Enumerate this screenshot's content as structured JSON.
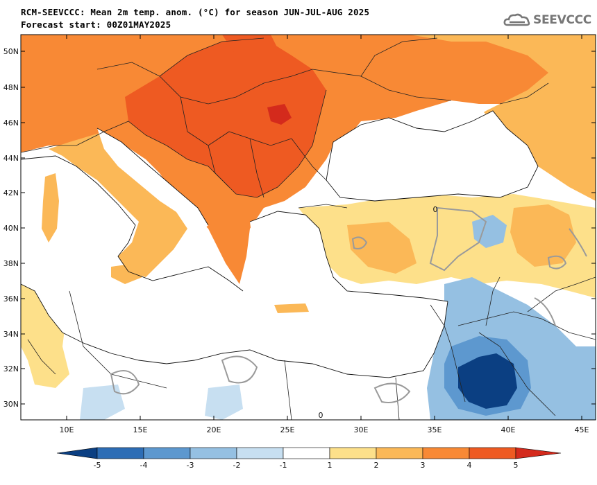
{
  "header": {
    "title_line1": "RCM-SEEVCCC: Mean 2m temp. anom. (°C) for season JUN-JUL-AUG 2025",
    "title_line2": "Forecast start: 00Z01MAY2025"
  },
  "logo": {
    "text": "SEEVCCC",
    "icon": "cloud-logo-icon"
  },
  "map": {
    "lon_range": [
      7,
      46
    ],
    "lat_range": [
      29,
      51
    ],
    "x_ticks": [
      "10E",
      "15E",
      "20E",
      "25E",
      "30E",
      "35E",
      "40E",
      "45E"
    ],
    "y_ticks": [
      "50N",
      "48N",
      "46N",
      "44N",
      "42N",
      "40N",
      "38N",
      "36N",
      "34N",
      "32N",
      "30N"
    ],
    "contour_label": "0"
  },
  "colorbar": {
    "labels": [
      "-5",
      "-4",
      "-3",
      "-2",
      "-1",
      "1",
      "2",
      "3",
      "4",
      "5"
    ],
    "colors": [
      "#0b3f82",
      "#2d6db5",
      "#5d98cf",
      "#95c0e2",
      "#c7dff1",
      "#ffffff",
      "#fde08a",
      "#fbb857",
      "#f88935",
      "#ee5a22",
      "#d42a1c",
      "#c8001a"
    ]
  }
}
